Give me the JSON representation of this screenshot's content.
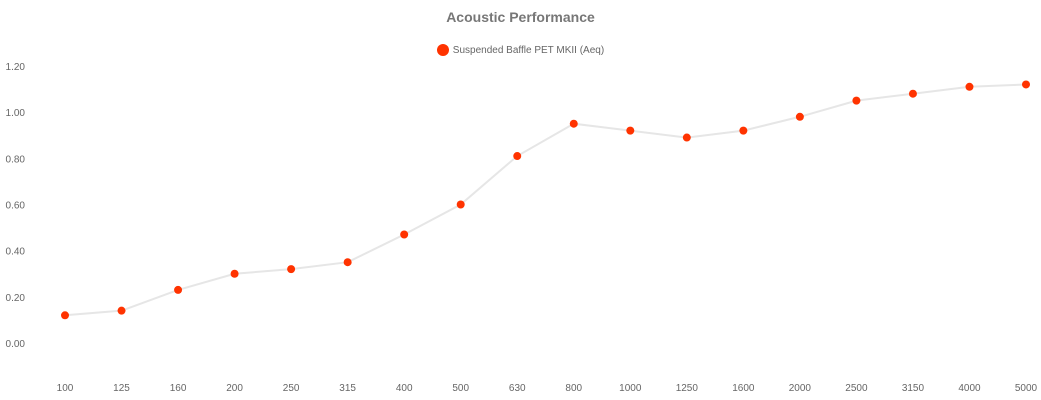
{
  "chart_data": {
    "type": "line",
    "title": "Acoustic Performance",
    "xlabel": "",
    "ylabel": "",
    "categories": [
      "100",
      "125",
      "160",
      "200",
      "250",
      "315",
      "400",
      "500",
      "630",
      "800",
      "1000",
      "1250",
      "1600",
      "2000",
      "2500",
      "3150",
      "4000",
      "5000"
    ],
    "series": [
      {
        "name": "Suspended Baffle PET MKII (Aeq)",
        "values": [
          0.12,
          0.14,
          0.23,
          0.3,
          0.32,
          0.35,
          0.47,
          0.6,
          0.81,
          0.95,
          0.92,
          0.89,
          0.92,
          0.98,
          1.05,
          1.08,
          1.11,
          1.12
        ]
      }
    ],
    "yticks": [
      "0.00",
      "0.20",
      "0.40",
      "0.60",
      "0.80",
      "1.00",
      "1.20"
    ],
    "ylim": [
      0,
      1.2
    ],
    "grid": false,
    "legend_position": "top-center",
    "colors": {
      "series": "#ff3300",
      "line": "#e6e6e6",
      "title": "#777777",
      "tick": "#666666"
    }
  }
}
